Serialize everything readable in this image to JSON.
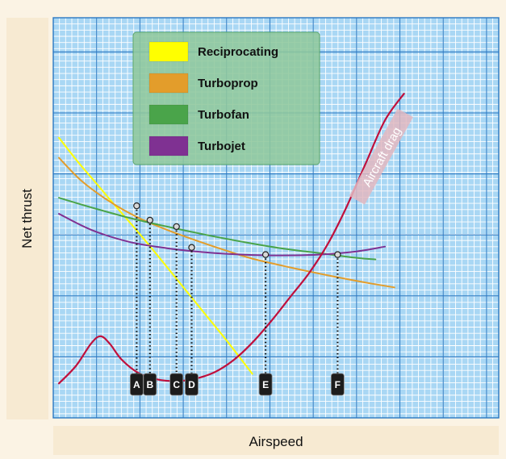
{
  "chart_data": {
    "type": "line",
    "title": "",
    "xlabel": "Airspeed",
    "ylabel": "Net thrust",
    "grid": true,
    "legend_position": "top-left",
    "colors": {
      "background": "#fbf3e4",
      "plot_background": "#a9d7f4",
      "grid_minor": "#ffffff",
      "grid_major": "#2a78c2",
      "legend_background": "#8fc89c",
      "drag_curve": "#c0103c"
    },
    "series": [
      {
        "name": "Reciprocating",
        "color": "#ffff00",
        "x": [
          0.3,
          1.3,
          2.2,
          3.2,
          4.3,
          5.5,
          6.8,
          8.0,
          9.2,
          10.5
        ],
        "y": [
          50.0,
          47.0,
          44.5,
          41.7,
          38.7,
          35.3,
          31.5,
          28.0,
          24.5,
          20.5
        ]
      },
      {
        "name": "Turboprop",
        "color": "#e39d2b",
        "x": [
          0.3,
          1.5,
          3.0,
          4.5,
          6.0,
          7.5,
          9.0,
          10.5,
          12.5,
          14.5,
          16.5,
          18.0
        ],
        "y": [
          47.5,
          44.6,
          42.0,
          40.0,
          38.5,
          37.2,
          36.0,
          34.9,
          33.8,
          32.8,
          31.9,
          31.3
        ]
      },
      {
        "name": "Turbofan",
        "color": "#4aa44a",
        "x": [
          0.3,
          2.0,
          4.0,
          6.0,
          8.0,
          10.0,
          12.0,
          14.0,
          16.0,
          17.0
        ],
        "y": [
          42.5,
          41.3,
          40.0,
          38.9,
          37.9,
          37.0,
          36.2,
          35.6,
          35.0,
          34.8
        ]
      },
      {
        "name": "Turbojet",
        "color": "#7f3192",
        "x": [
          0.3,
          2.0,
          4.0,
          6.0,
          8.0,
          10.0,
          12.0,
          14.0,
          16.0,
          17.5
        ],
        "y": [
          40.5,
          38.5,
          37.0,
          36.2,
          35.7,
          35.4,
          35.3,
          35.4,
          35.8,
          36.4
        ]
      }
    ],
    "drag": {
      "name": "Aircraft drag",
      "x": [
        0.3,
        1.2,
        2.0,
        2.5,
        3.0,
        3.6,
        4.5,
        5.5,
        6.5,
        7.5,
        8.5,
        9.5,
        10.5,
        11.5,
        12.5,
        13.5,
        14.5,
        15.5,
        16.5,
        17.5,
        18.5
      ],
      "y": [
        19.3,
        21.5,
        24.3,
        25.2,
        24.2,
        22.3,
        20.6,
        19.8,
        19.6,
        19.9,
        20.7,
        22.2,
        24.4,
        27.1,
        30.1,
        33.1,
        36.8,
        41.5,
        46.9,
        52.2,
        55.5
      ]
    },
    "markers": [
      {
        "label": "A",
        "x": 4.4,
        "y": 41.5
      },
      {
        "label": "B",
        "x": 5.1,
        "y": 39.7
      },
      {
        "label": "C",
        "x": 6.5,
        "y": 38.9
      },
      {
        "label": "D",
        "x": 7.3,
        "y": 36.3
      },
      {
        "label": "E",
        "x": 11.2,
        "y": 35.4
      },
      {
        "label": "F",
        "x": 15.0,
        "y": 35.4
      }
    ],
    "xlim": [
      0,
      23.5
    ],
    "ylim": [
      15,
      65
    ]
  }
}
